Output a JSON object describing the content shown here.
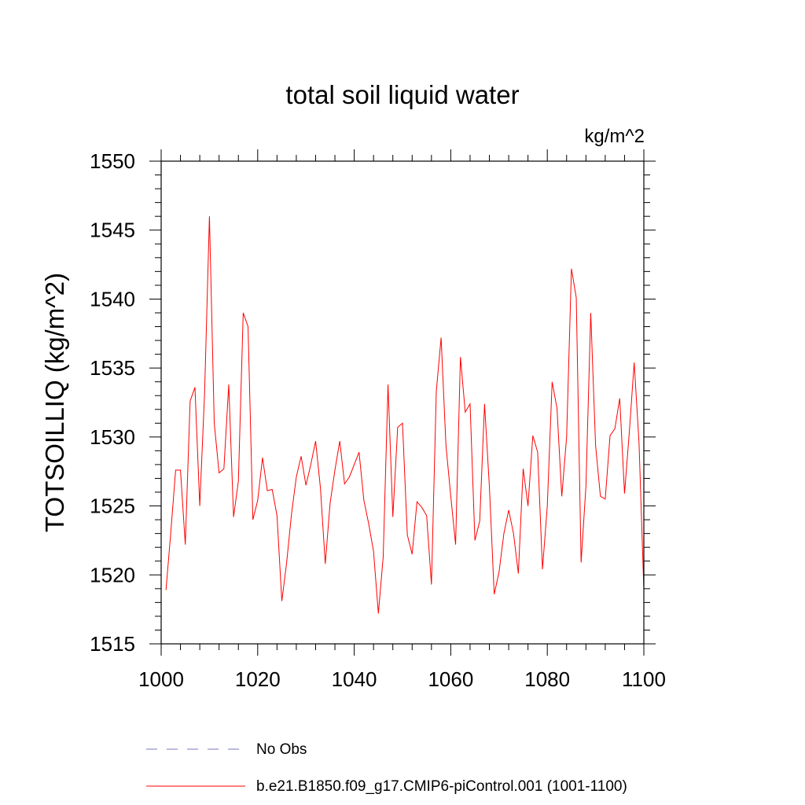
{
  "chart_data": {
    "type": "line",
    "title": "total soil liquid water",
    "units_label": "kg/m^2",
    "xlabel": "",
    "ylabel": "TOTSOILLIQ  (kg/m^2)",
    "xlim": [
      1000,
      1100
    ],
    "ylim": [
      1515,
      1550
    ],
    "x_ticks": [
      1000,
      1020,
      1040,
      1060,
      1080,
      1100
    ],
    "y_ticks": [
      1515,
      1520,
      1525,
      1530,
      1535,
      1540,
      1545,
      1550
    ],
    "x_tick_labels": [
      "1000",
      "1020",
      "1040",
      "1060",
      "1080",
      "1100"
    ],
    "y_tick_labels": [
      "1515",
      "1520",
      "1525",
      "1530",
      "1535",
      "1540",
      "1545",
      "1550"
    ],
    "series": [
      {
        "name": "b.e21.B1850.f09_g17.CMIP6-piControl.001 (1001-1100)",
        "color": "#ff0000",
        "style": "solid",
        "x": [
          1001,
          1002,
          1003,
          1004,
          1005,
          1006,
          1007,
          1008,
          1009,
          1010,
          1011,
          1012,
          1013,
          1014,
          1015,
          1016,
          1017,
          1018,
          1019,
          1020,
          1021,
          1022,
          1023,
          1024,
          1025,
          1026,
          1027,
          1028,
          1029,
          1030,
          1031,
          1032,
          1033,
          1034,
          1035,
          1036,
          1037,
          1038,
          1039,
          1040,
          1041,
          1042,
          1043,
          1044,
          1045,
          1046,
          1047,
          1048,
          1049,
          1050,
          1051,
          1052,
          1053,
          1054,
          1055,
          1056,
          1057,
          1058,
          1059,
          1060,
          1061,
          1062,
          1063,
          1064,
          1065,
          1066,
          1067,
          1068,
          1069,
          1070,
          1071,
          1072,
          1073,
          1074,
          1075,
          1076,
          1077,
          1078,
          1079,
          1080,
          1081,
          1082,
          1083,
          1084,
          1085,
          1086,
          1087,
          1088,
          1089,
          1090,
          1091,
          1092,
          1093,
          1094,
          1095,
          1096,
          1097,
          1098,
          1099,
          1100
        ],
        "values": [
          1518.9,
          1523.1,
          1527.6,
          1527.6,
          1522.2,
          1532.6,
          1533.6,
          1525.0,
          1533.2,
          1546.0,
          1531.0,
          1527.4,
          1527.7,
          1533.8,
          1524.2,
          1526.8,
          1539.0,
          1538.0,
          1524.0,
          1525.4,
          1528.5,
          1526.1,
          1526.2,
          1524.3,
          1518.1,
          1520.9,
          1524.4,
          1527.1,
          1528.6,
          1526.5,
          1528.0,
          1529.7,
          1526.3,
          1520.8,
          1525.2,
          1527.6,
          1529.7,
          1526.6,
          1527.1,
          1528.0,
          1528.9,
          1525.4,
          1523.7,
          1521.7,
          1517.2,
          1521.3,
          1533.8,
          1524.2,
          1530.7,
          1531.0,
          1522.9,
          1521.5,
          1525.3,
          1524.9,
          1524.3,
          1519.3,
          1533.3,
          1537.2,
          1529.4,
          1525.7,
          1522.2,
          1535.8,
          1531.8,
          1532.4,
          1522.5,
          1523.9,
          1532.4,
          1526.4,
          1518.6,
          1520.2,
          1523.0,
          1524.7,
          1523.0,
          1520.1,
          1527.7,
          1525.0,
          1530.1,
          1528.9,
          1520.4,
          1525.0,
          1534.0,
          1532.1,
          1525.7,
          1530.0,
          1542.2,
          1540.1,
          1520.9,
          1526.4,
          1539.0,
          1529.4,
          1525.7,
          1525.5,
          1530.1,
          1530.6,
          1532.8,
          1525.9,
          1530.4,
          1535.4,
          1529.6,
          1518.9
        ]
      }
    ],
    "legend": [
      {
        "label": "No Obs",
        "color": "#7777bb",
        "style": "dashed"
      },
      {
        "label": "b.e21.B1850.f09_g17.CMIP6-piControl.001 (1001-1100)",
        "color": "#ff0000",
        "style": "solid"
      }
    ],
    "grid": false,
    "legend_position": "bottom"
  }
}
